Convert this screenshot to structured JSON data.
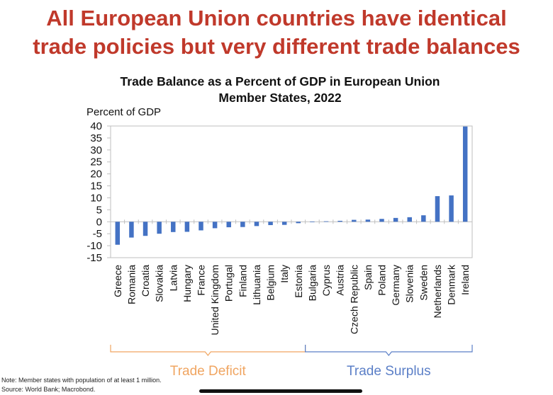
{
  "headline": {
    "line1": "All European Union countries have identical",
    "line2": "trade policies but very different trade balances"
  },
  "colors": {
    "headline": "#c0392b",
    "bar": "#4472c4",
    "deficit": "#f0a561",
    "surplus": "#5b7fc7"
  },
  "chart_data": {
    "type": "bar",
    "title_line1": "Trade Balance as a Percent of GDP in European Union",
    "title_line2": "Member States, 2022",
    "ylabel": "Percent of GDP",
    "xlabel": "",
    "ylim": [
      -15,
      40
    ],
    "yticks": [
      40,
      35,
      30,
      25,
      20,
      15,
      10,
      5,
      0,
      -5,
      -10,
      -15
    ],
    "grid": false,
    "categories": [
      "Greece",
      "Romania",
      "Croatia",
      "Slovakia",
      "Latvia",
      "Hungary",
      "France",
      "United Kingdom",
      "Portugal",
      "Finland",
      "Lithuania",
      "Belgium",
      "Italy",
      "Estonia",
      "Bulgaria",
      "Cyprus",
      "Austria",
      "Czech Republic",
      "Spain",
      "Poland",
      "Germany",
      "Slovenia",
      "Sweden",
      "Netherlands",
      "Denmark",
      "Ireland"
    ],
    "values": [
      -9.6,
      -6.6,
      -5.9,
      -5.0,
      -4.3,
      -4.2,
      -3.6,
      -2.7,
      -2.3,
      -2.2,
      -1.8,
      -1.4,
      -1.3,
      -0.6,
      0.1,
      0.2,
      0.4,
      0.8,
      0.9,
      1.2,
      1.6,
      1.9,
      2.7,
      10.7,
      11.0,
      39.8
    ],
    "groups": [
      {
        "label": "Trade Deficit",
        "from": 0,
        "to": 13
      },
      {
        "label": "Trade Surplus",
        "from": 14,
        "to": 25
      }
    ]
  },
  "notes": {
    "note": "Note: Member states with population of at least 1 million.",
    "source": "Source: World Bank; Macrobond."
  }
}
